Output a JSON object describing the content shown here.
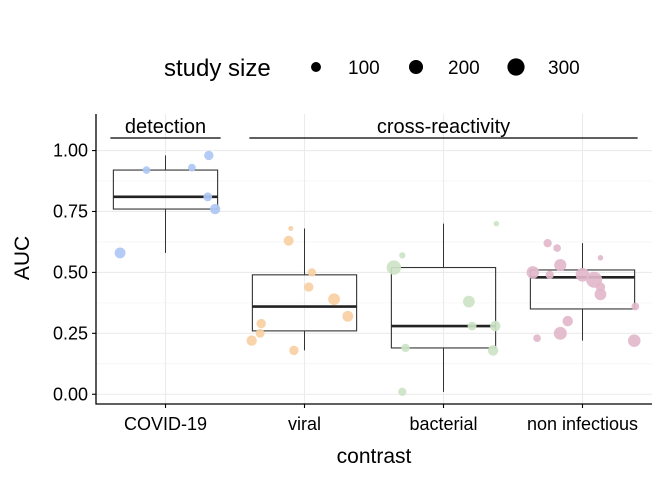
{
  "chart_data": {
    "type": "boxplot",
    "xlabel": "contrast",
    "ylabel": "AUC",
    "ylim": [
      -0.04,
      1.15
    ],
    "yticks": [
      0.0,
      0.25,
      0.5,
      0.75,
      1.0
    ],
    "ytick_labels": [
      "0.00",
      "0.25",
      "0.50",
      "0.75",
      "1.00"
    ],
    "grid": true,
    "legend": {
      "title": "study size",
      "placement": "top",
      "entries": [
        {
          "label": "100",
          "value": 100
        },
        {
          "label": "200",
          "value": 200
        },
        {
          "label": "300",
          "value": 300
        }
      ]
    },
    "groups": [
      {
        "label": "detection",
        "categories": [
          "COVID-19"
        ]
      },
      {
        "label": "cross-reactivity",
        "categories": [
          "viral",
          "bacterial",
          "non infectious"
        ]
      }
    ],
    "categories": [
      {
        "name": "COVID-19",
        "color": "#aec8f4",
        "box": {
          "whislo": 0.58,
          "q1": 0.76,
          "median": 0.81,
          "q3": 0.92,
          "whishi": 0.98
        },
        "points": [
          {
            "x": -0.18,
            "y": 0.92,
            "size": 60
          },
          {
            "x": 0.25,
            "y": 0.93,
            "size": 60
          },
          {
            "x": 0.41,
            "y": 0.98,
            "size": 90
          },
          {
            "x": 0.4,
            "y": 0.81,
            "size": 80
          },
          {
            "x": 0.47,
            "y": 0.76,
            "size": 110
          },
          {
            "x": -0.43,
            "y": 0.58,
            "size": 120
          }
        ]
      },
      {
        "name": "viral",
        "color": "#f9cfa3",
        "box": {
          "whislo": 0.18,
          "q1": 0.26,
          "median": 0.36,
          "q3": 0.49,
          "whishi": 0.68
        },
        "points": [
          {
            "x": -0.13,
            "y": 0.68,
            "size": 25
          },
          {
            "x": -0.15,
            "y": 0.63,
            "size": 100
          },
          {
            "x": 0.07,
            "y": 0.5,
            "size": 70
          },
          {
            "x": 0.04,
            "y": 0.44,
            "size": 90
          },
          {
            "x": 0.28,
            "y": 0.39,
            "size": 140
          },
          {
            "x": 0.41,
            "y": 0.32,
            "size": 120
          },
          {
            "x": -0.41,
            "y": 0.29,
            "size": 90
          },
          {
            "x": -0.42,
            "y": 0.25,
            "size": 80
          },
          {
            "x": -0.5,
            "y": 0.22,
            "size": 110
          },
          {
            "x": -0.1,
            "y": 0.18,
            "size": 90
          }
        ]
      },
      {
        "name": "bacterial",
        "color": "#cce3c5",
        "box": {
          "whislo": 0.01,
          "q1": 0.19,
          "median": 0.28,
          "q3": 0.52,
          "whishi": 0.7
        },
        "points": [
          {
            "x": 0.5,
            "y": 0.7,
            "size": 30
          },
          {
            "x": -0.39,
            "y": 0.57,
            "size": 40
          },
          {
            "x": -0.47,
            "y": 0.52,
            "size": 210
          },
          {
            "x": 0.24,
            "y": 0.38,
            "size": 140
          },
          {
            "x": 0.27,
            "y": 0.28,
            "size": 80
          },
          {
            "x": 0.49,
            "y": 0.28,
            "size": 110
          },
          {
            "x": -0.36,
            "y": 0.19,
            "size": 70
          },
          {
            "x": 0.47,
            "y": 0.18,
            "size": 110
          },
          {
            "x": -0.39,
            "y": 0.01,
            "size": 70
          }
        ]
      },
      {
        "name": "non infectious",
        "color": "#e2b8cb",
        "box": {
          "whislo": 0.22,
          "q1": 0.35,
          "median": 0.48,
          "q3": 0.51,
          "whishi": 0.62
        },
        "points": [
          {
            "x": -0.33,
            "y": 0.62,
            "size": 70
          },
          {
            "x": -0.24,
            "y": 0.6,
            "size": 60
          },
          {
            "x": 0.17,
            "y": 0.56,
            "size": 30
          },
          {
            "x": -0.21,
            "y": 0.53,
            "size": 150
          },
          {
            "x": -0.47,
            "y": 0.5,
            "size": 160
          },
          {
            "x": -0.31,
            "y": 0.49,
            "size": 70
          },
          {
            "x": 0.0,
            "y": 0.49,
            "size": 190
          },
          {
            "x": 0.11,
            "y": 0.47,
            "size": 260
          },
          {
            "x": 0.17,
            "y": 0.44,
            "size": 90
          },
          {
            "x": 0.17,
            "y": 0.41,
            "size": 140
          },
          {
            "x": 0.5,
            "y": 0.36,
            "size": 60
          },
          {
            "x": -0.14,
            "y": 0.3,
            "size": 110
          },
          {
            "x": -0.21,
            "y": 0.25,
            "size": 170
          },
          {
            "x": -0.43,
            "y": 0.23,
            "size": 60
          },
          {
            "x": 0.49,
            "y": 0.22,
            "size": 160
          }
        ]
      }
    ]
  }
}
